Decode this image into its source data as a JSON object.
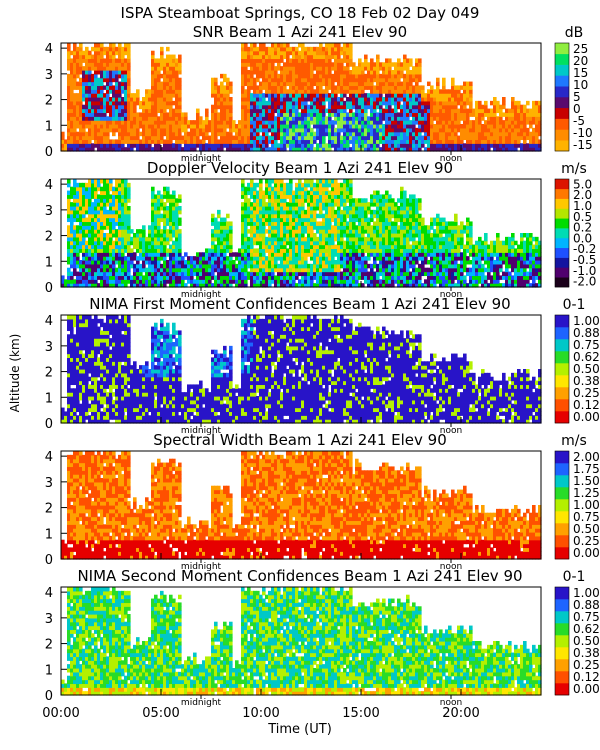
{
  "figure": {
    "title": "ISPA Steamboat Springs, CO   18 Feb 02 Day 049",
    "ylabel": "Altitude (km)",
    "xlabel": "Time (UT)",
    "x_ticks": [
      "00:00",
      "05:00",
      "10:00",
      "15:00",
      "20:00"
    ],
    "x_tick_hours": [
      0,
      5,
      10,
      15,
      20
    ],
    "x_range_hours": [
      0,
      24
    ],
    "midnight_label": "midnight",
    "noon_label": "noon",
    "midnight_hour": 7.0,
    "noon_hour": 19.5
  },
  "chart_data": [
    {
      "type": "heatmap",
      "title": "SNR Beam 1 Azi 241 Elev 90",
      "unit": "dB",
      "y_ticks": [
        "0",
        "1",
        "2",
        "3",
        "4"
      ],
      "ylim": [
        0,
        4.2
      ],
      "colorbar_labels": [
        "25",
        "20",
        "15",
        "10",
        "5",
        "0",
        "-5",
        "-10",
        "-15"
      ],
      "colorbar_colors": [
        "#ffb300",
        "#ff8c00",
        "#ff5a00",
        "#c80000",
        "#5a0a6e",
        "#2828c8",
        "#1e78ff",
        "#00c8c8",
        "#00e060",
        "#90ee40"
      ]
    },
    {
      "type": "heatmap",
      "title": "Doppler Velocity Beam 1 Azi 241 Elev 90",
      "unit": "m/s",
      "y_ticks": [
        "0",
        "1",
        "2",
        "3",
        "4"
      ],
      "ylim": [
        0,
        4.2
      ],
      "colorbar_labels": [
        "5.0",
        "2.0",
        "1.0",
        "0.5",
        "0.2",
        "0.0",
        "-0.2",
        "-0.5",
        "-1.0",
        "-2.0"
      ],
      "colorbar_colors": [
        "#1a001a",
        "#50006e",
        "#1414a0",
        "#1e50ff",
        "#00b4ff",
        "#00dcb4",
        "#00dc00",
        "#b4e600",
        "#ffc800",
        "#ff7800",
        "#dc1400"
      ]
    },
    {
      "type": "heatmap",
      "title": "NIMA First Moment Confidences Beam 1 Azi 241 Elev 90",
      "unit": "0-1",
      "y_ticks": [
        "0",
        "1",
        "2",
        "3",
        "4"
      ],
      "ylim": [
        0,
        4.2
      ],
      "colorbar_labels": [
        "1.00",
        "0.88",
        "0.75",
        "0.62",
        "0.50",
        "0.38",
        "0.25",
        "0.12",
        "0.00"
      ],
      "colorbar_colors": [
        "#e60000",
        "#ff5000",
        "#ffa000",
        "#ffe600",
        "#b4f000",
        "#28dc28",
        "#00c8c8",
        "#1e64ff",
        "#2814c8"
      ]
    },
    {
      "type": "heatmap",
      "title": "Spectral Width Beam 1 Azi 241 Elev 90",
      "unit": "m/s",
      "y_ticks": [
        "0",
        "1",
        "2",
        "3",
        "4"
      ],
      "ylim": [
        0,
        4.2
      ],
      "colorbar_labels": [
        "2.00",
        "1.75",
        "1.50",
        "1.25",
        "1.00",
        "0.75",
        "0.50",
        "0.25",
        "0.00"
      ],
      "colorbar_colors": [
        "#e60000",
        "#ff5000",
        "#ffa000",
        "#ffe600",
        "#b4f000",
        "#28dc28",
        "#00c8c8",
        "#1e64ff",
        "#2814c8"
      ]
    },
    {
      "type": "heatmap",
      "title": "NIMA Second Moment Confidences Beam 1 Azi 241 Elev 90",
      "unit": "0-1",
      "y_ticks": [
        "0",
        "1",
        "2",
        "3",
        "4"
      ],
      "ylim": [
        0,
        4.2
      ],
      "colorbar_labels": [
        "1.00",
        "0.88",
        "0.75",
        "0.62",
        "0.50",
        "0.38",
        "0.25",
        "0.12",
        "0.00"
      ],
      "colorbar_colors": [
        "#e60000",
        "#ff5000",
        "#ffa000",
        "#ffe600",
        "#b4f000",
        "#28dc28",
        "#00c8c8",
        "#1e64ff",
        "#2814c8"
      ]
    }
  ]
}
